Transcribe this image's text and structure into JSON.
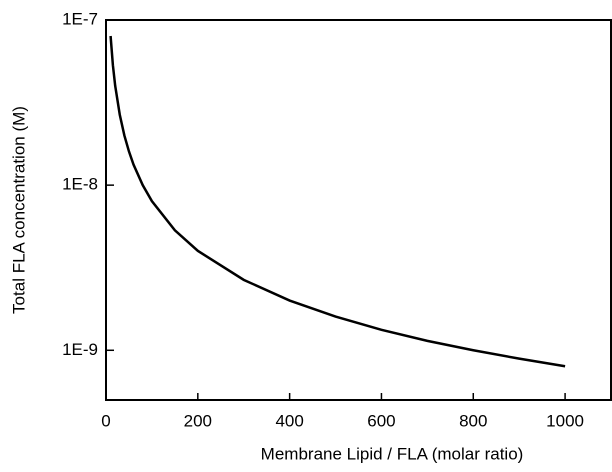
{
  "chart_data": {
    "type": "line",
    "x_label": "Membrane Lipid / FLA (molar ratio)",
    "y_label": "Total FLA concentration (M)",
    "yscale": "log",
    "xlim": [
      0,
      1100
    ],
    "ylim": [
      5e-10,
      1e-07
    ],
    "xticks": [
      0,
      200,
      400,
      600,
      800,
      1000
    ],
    "yticks": [
      {
        "value": 1e-07,
        "label": "1E-7"
      },
      {
        "value": 1e-08,
        "label": "1E-8"
      },
      {
        "value": 1e-09,
        "label": "1E-9"
      }
    ],
    "series": [
      {
        "color": "#000000",
        "x": [
          10,
          15,
          20,
          30,
          40,
          50,
          60,
          80,
          100,
          150,
          200,
          300,
          400,
          500,
          600,
          700,
          800,
          900,
          1000
        ],
        "values": [
          8e-08,
          5.33e-08,
          4e-08,
          2.67e-08,
          2e-08,
          1.6e-08,
          1.33e-08,
          1e-08,
          8e-09,
          5.33e-09,
          4e-09,
          2.67e-09,
          2e-09,
          1.6e-09,
          1.33e-09,
          1.14e-09,
          1e-09,
          8.9e-10,
          8e-10
        ]
      }
    ]
  }
}
